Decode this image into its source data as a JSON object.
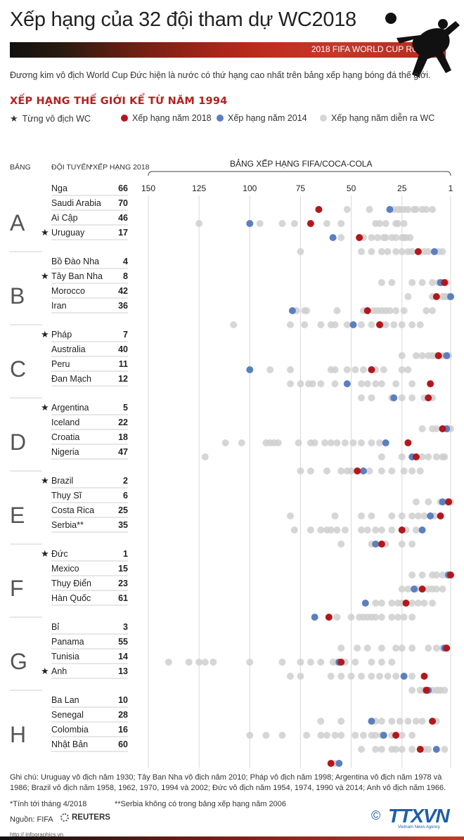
{
  "title": "Xếp hạng của 32 đội tham dự WC2018",
  "banner": "2018 FIFA WORLD CUP RUSSIA",
  "intro": "Đương kim vô địch World Cup Đức hiện là nước có thứ hạng cao nhất trên bảng xếp hạng bóng đá thế giới.",
  "section_title": "XẾP HẠNG THẾ GIỚI KỂ TỪ NĂM 1994",
  "legend": {
    "champion": "Từng vô địch WC",
    "rank2018": "Xếp hạng năm 2018",
    "rank2014": "Xếp hạng năm 2014",
    "rankWC": "Xếp hạng năm diễn ra WC"
  },
  "columns": {
    "group": "BẢNG",
    "team": "ĐỘI TUYỂN",
    "rank2018": "*XẾP HẠNG 2018"
  },
  "colors": {
    "rank2018": "#b3171c",
    "rank2014": "#5b7fc0",
    "rankWC": "#cfcfcf",
    "accent": "#b3211e"
  },
  "chart_data": {
    "type": "scatter",
    "title": "BẢNG XẾP HẠNG FIFA/COCA-COLA",
    "x_ticks": [
      150,
      125,
      100,
      75,
      50,
      25,
      1
    ],
    "xlim": [
      150,
      1
    ],
    "groups": [
      {
        "name": "A",
        "teams": [
          {
            "name": "Nga",
            "rank2018": 66,
            "champion": false,
            "r2014": 31,
            "others": [
              52,
              41,
              24,
              22,
              18,
              15,
              10,
              29,
              19,
              26,
              13,
              27
            ]
          },
          {
            "name": "Saudi Arabia",
            "rank2018": 70,
            "champion": false,
            "r2014": 100,
            "others": [
              125,
              95,
              84,
              78,
              62,
              55,
              38,
              36,
              33,
              27,
              24,
              28
            ]
          },
          {
            "name": "Ai Cập",
            "rank2018": 46,
            "champion": false,
            "r2014": 59,
            "others": [
              55,
              44,
              40,
              37,
              34,
              33,
              30,
              28,
              25,
              24,
              23,
              21
            ]
          },
          {
            "name": "Uruguay",
            "rank2018": 17,
            "champion": true,
            "r2014": 9,
            "others": [
              75,
              45,
              40,
              35,
              32,
              28,
              25,
              20,
              22,
              14,
              12,
              5,
              7
            ]
          }
        ]
      },
      {
        "name": "B",
        "teams": [
          {
            "name": "Bồ Đào Nha",
            "rank2018": 4,
            "champion": false,
            "r2014": 6,
            "others": [
              35,
              30,
              20,
              15,
              10,
              5,
              7,
              3
            ]
          },
          {
            "name": "Tây Ban Nha",
            "rank2018": 8,
            "champion": true,
            "r2014": 1,
            "others": [
              22,
              10,
              8,
              5,
              3,
              2,
              1,
              4
            ]
          },
          {
            "name": "Morocco",
            "rank2018": 42,
            "champion": false,
            "r2014": 79,
            "others": [
              77,
              73,
              72,
              57,
              44,
              39,
              37,
              35,
              33,
              31,
              28,
              24,
              13,
              10
            ]
          },
          {
            "name": "Iran",
            "rank2018": 36,
            "champion": false,
            "r2014": 49,
            "others": [
              108,
              80,
              73,
              65,
              60,
              58,
              52,
              45,
              40,
              35,
              33,
              29,
              25,
              20,
              16
            ]
          }
        ]
      },
      {
        "name": "C",
        "teams": [
          {
            "name": "Pháp",
            "rank2018": 7,
            "champion": true,
            "r2014": 3,
            "others": [
              25,
              18,
              15,
              12,
              10,
              8,
              5,
              2
            ]
          },
          {
            "name": "Australia",
            "rank2018": 40,
            "champion": false,
            "r2014": 100,
            "others": [
              90,
              80,
              60,
              58,
              52,
              48,
              44,
              38,
              34,
              25,
              22
            ]
          },
          {
            "name": "Peru",
            "rank2018": 11,
            "champion": false,
            "r2014": 52,
            "others": [
              80,
              75,
              71,
              69,
              65,
              58,
              45,
              42,
              38,
              35,
              28,
              20
            ]
          },
          {
            "name": "Đan Mạch",
            "rank2018": 12,
            "champion": false,
            "r2014": 29,
            "others": [
              45,
              40,
              30,
              25,
              20,
              14,
              10
            ]
          }
        ]
      },
      {
        "name": "D",
        "teams": [
          {
            "name": "Argentina",
            "rank2018": 5,
            "champion": true,
            "r2014": 3,
            "others": [
              15,
              10,
              8,
              5,
              2,
              1
            ]
          },
          {
            "name": "Iceland",
            "rank2018": 22,
            "champion": false,
            "r2014": 33,
            "others": [
              112,
              104,
              92,
              90,
              88,
              86,
              76,
              70,
              68,
              63,
              60,
              57,
              53,
              49,
              45,
              40,
              36
            ]
          },
          {
            "name": "Croatia",
            "rank2018": 18,
            "champion": false,
            "r2014": 20,
            "others": [
              122,
              35,
              25,
              15,
              12,
              8,
              5,
              4
            ]
          },
          {
            "name": "Nigeria",
            "rank2018": 47,
            "champion": false,
            "r2014": 44,
            "others": [
              75,
              70,
              62,
              55,
              52,
              50,
              41,
              35,
              30,
              24,
              20,
              16
            ]
          }
        ]
      },
      {
        "name": "E",
        "teams": [
          {
            "name": "Brazil",
            "rank2018": 2,
            "champion": true,
            "r2014": 5,
            "others": [
              18,
              12,
              6,
              3,
              1
            ]
          },
          {
            "name": "Thụy Sĩ",
            "rank2018": 6,
            "champion": false,
            "r2014": 11,
            "others": [
              80,
              58,
              45,
              40,
              30,
              25,
              20,
              17,
              14,
              9
            ]
          },
          {
            "name": "Costa Rica",
            "rank2018": 25,
            "champion": false,
            "r2014": 15,
            "others": [
              78,
              70,
              65,
              62,
              60,
              57,
              53,
              45,
              42,
              38,
              35,
              30,
              23,
              18
            ]
          },
          {
            "name": "Serbia**",
            "rank2018": 35,
            "champion": false,
            "r2014": 38,
            "others": [
              55,
              40,
              33,
              25,
              20
            ]
          }
        ]
      },
      {
        "name": "F",
        "teams": [
          {
            "name": "Đức",
            "rank2018": 1,
            "champion": true,
            "r2014": 2,
            "others": [
              20,
              15,
              10,
              8,
              5,
              3,
              2
            ]
          },
          {
            "name": "Mexico",
            "rank2018": 15,
            "champion": false,
            "r2014": 19,
            "others": [
              25,
              22,
              18,
              12,
              10,
              8,
              5
            ]
          },
          {
            "name": "Thụy Điển",
            "rank2018": 23,
            "champion": false,
            "r2014": 43,
            "others": [
              38,
              35,
              30,
              27,
              25,
              20,
              17,
              14,
              10
            ]
          },
          {
            "name": "Hàn Quốc",
            "rank2018": 61,
            "champion": false,
            "r2014": 68,
            "others": [
              57,
              50,
              46,
              44,
              42,
              40,
              38,
              35,
              30,
              27,
              24,
              20
            ]
          }
        ]
      },
      {
        "name": "G",
        "teams": [
          {
            "name": "Bỉ",
            "rank2018": 3,
            "champion": false,
            "r2014": 4,
            "others": [
              55,
              47,
              42,
              35,
              28,
              25,
              20,
              12,
              8,
              5
            ]
          },
          {
            "name": "Panama",
            "rank2018": 55,
            "champion": false,
            "r2014": 56,
            "others": [
              140,
              130,
              125,
              122,
              118,
              100,
              84,
              75,
              70,
              65,
              59,
              57,
              53,
              48,
              40,
              35,
              30
            ]
          },
          {
            "name": "Tunisia",
            "rank2018": 14,
            "champion": false,
            "r2014": 24,
            "others": [
              80,
              75,
              60,
              55,
              50,
              45,
              40,
              36,
              32,
              28,
              20
            ]
          },
          {
            "name": "Anh",
            "rank2018": 13,
            "champion": true,
            "r2014": 12,
            "others": [
              20,
              16,
              14,
              10,
              8,
              7,
              6,
              4
            ]
          }
        ]
      },
      {
        "name": "H",
        "teams": [
          {
            "name": "Ba Lan",
            "rank2018": 10,
            "champion": false,
            "r2014": 40,
            "others": [
              65,
              55,
              40,
              38,
              35,
              30,
              26,
              22,
              18,
              15,
              8
            ]
          },
          {
            "name": "Senegal",
            "rank2018": 28,
            "champion": false,
            "r2014": 34,
            "others": [
              100,
              92,
              84,
              72,
              65,
              62,
              58,
              55,
              48,
              44,
              40,
              38,
              35,
              30,
              25,
              20
            ]
          },
          {
            "name": "Colombia",
            "rank2018": 16,
            "champion": false,
            "r2014": 8,
            "others": [
              45,
              38,
              35,
              30,
              28,
              25,
              20,
              14,
              12,
              4
            ]
          },
          {
            "name": "Nhật Bản",
            "rank2018": 60,
            "champion": false,
            "r2014": 56,
            "others": [
              58
            ]
          }
        ]
      }
    ]
  },
  "notes": "Ghi chú: Uruguay vô địch năm 1930; Tây Ban Nha vô địch năm 2010; Pháp vô địch năm 1998; Argentina vô địch năm 1978 và 1986; Brazil vô địch năm 1958, 1962, 1970, 1994 và 2002; Đức vô địch năm 1954, 1974, 1990 và 2014; Anh vô địch năm 1966.",
  "footnote1": "*Tính tới tháng 4/2018",
  "footnote2": "**Serbia không có trong bảng xếp hạng năm 2006",
  "source": "Nguồn: FIFA",
  "reuters": "REUTERS",
  "url": "http:// infographics.vn",
  "ttxvn": "TTXVN",
  "ttxvn_sub": "Vietnam News Agency"
}
